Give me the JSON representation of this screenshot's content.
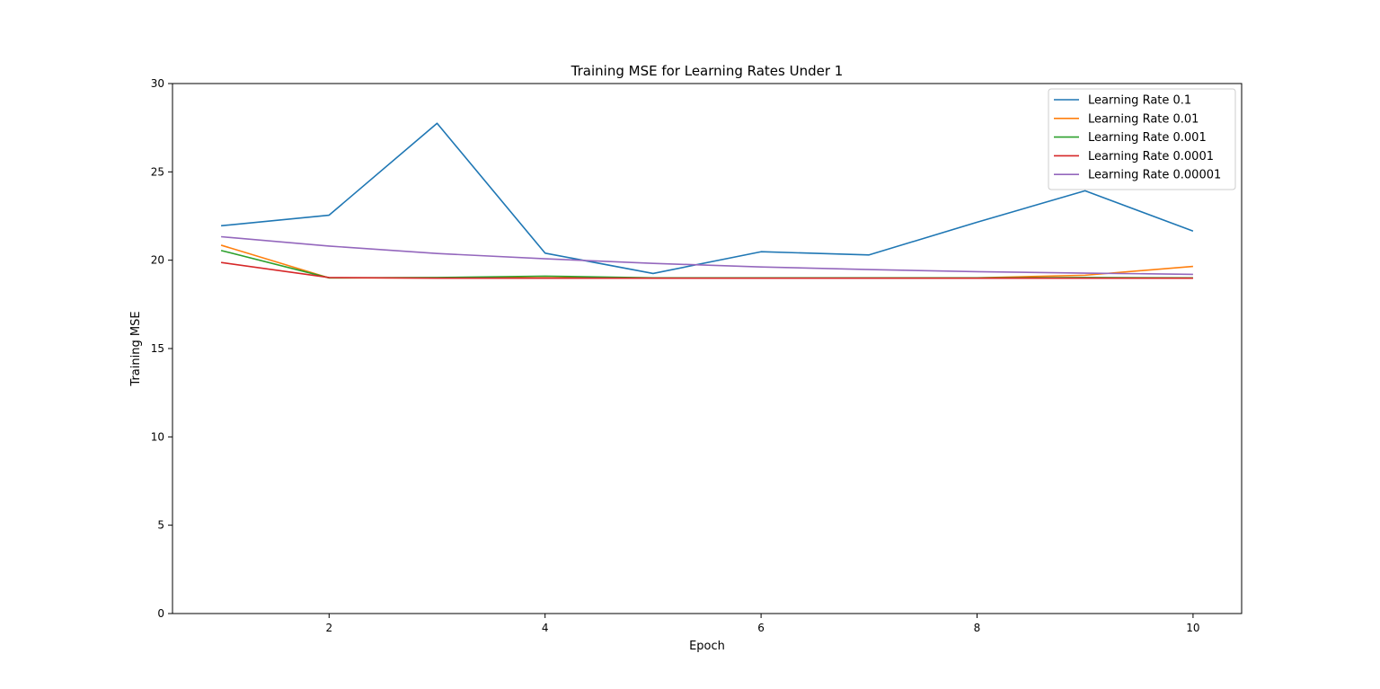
{
  "chart_data": {
    "type": "line",
    "title": "Training MSE for Learning Rates Under 1",
    "xlabel": "Epoch",
    "ylabel": "Training MSE",
    "x": [
      1,
      2,
      3,
      4,
      5,
      6,
      7,
      8,
      9,
      10
    ],
    "xlim": [
      0.55,
      10.45
    ],
    "ylim": [
      0,
      30
    ],
    "xticks": [
      2,
      4,
      6,
      8,
      10
    ],
    "yticks": [
      0,
      5,
      10,
      15,
      20,
      25,
      30
    ],
    "grid": false,
    "legend_position": "top-right",
    "series": [
      {
        "name": "Learning Rate 0.1",
        "color": "#1f77b4",
        "values": [
          21.95,
          22.55,
          27.75,
          20.4,
          19.25,
          20.48,
          20.3,
          22.15,
          23.93,
          21.65
        ]
      },
      {
        "name": "Learning Rate 0.01",
        "color": "#ff7f0e",
        "values": [
          20.85,
          19.0,
          19.0,
          19.0,
          19.0,
          19.0,
          19.0,
          19.0,
          19.15,
          19.65
        ]
      },
      {
        "name": "Learning Rate 0.001",
        "color": "#2ca02c",
        "values": [
          20.55,
          19.0,
          19.02,
          19.1,
          19.0,
          19.0,
          19.0,
          19.0,
          19.02,
          19.0
        ]
      },
      {
        "name": "Learning Rate 0.0001",
        "color": "#d62728",
        "values": [
          19.87,
          19.02,
          18.98,
          18.98,
          18.98,
          18.98,
          18.98,
          18.98,
          18.98,
          18.98
        ]
      },
      {
        "name": "Learning Rate 0.00001",
        "color": "#9467bd",
        "values": [
          21.33,
          20.8,
          20.38,
          20.08,
          19.82,
          19.62,
          19.47,
          19.35,
          19.27,
          19.2
        ]
      }
    ]
  }
}
